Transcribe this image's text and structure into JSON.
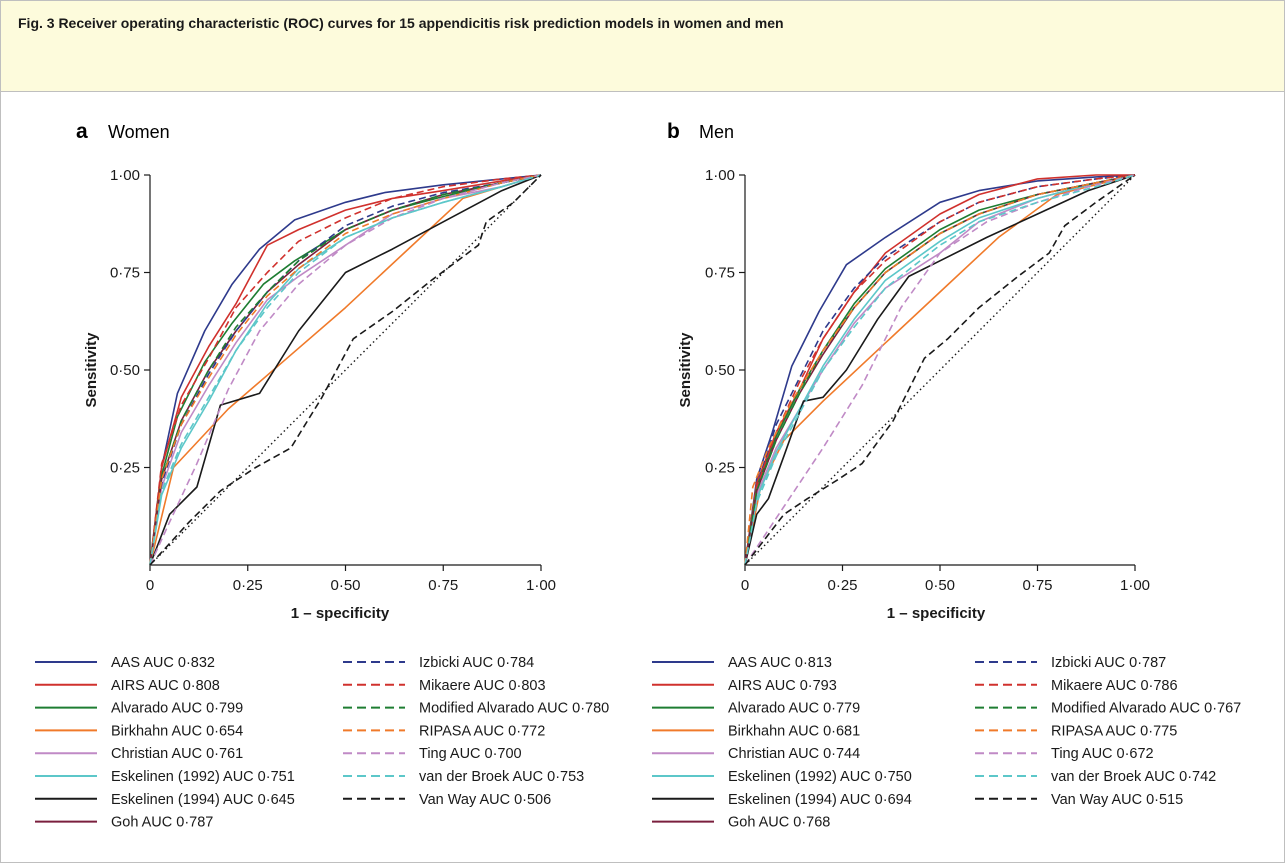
{
  "caption": "Fig. 3  Receiver operating characteristic (ROC) curves for 15 appendicitis risk prediction models in women and men",
  "colors": {
    "AAS": "#2e3a8c",
    "AIRS": "#d0312d",
    "Alvarado": "#1e7d32",
    "Birkhahn": "#f07a2a",
    "Christian": "#c08ac6",
    "Eskelinen1992": "#5cc7c9",
    "Eskelinen1994": "#1a1a1a",
    "Goh": "#7a1f3d",
    "Izbicki": "#2e3a8c",
    "Mikaere": "#d0312d",
    "ModAlvarado": "#1e7d32",
    "RIPASA": "#f07a2a",
    "Ting": "#c08ac6",
    "vanderBroek": "#5cc7c9",
    "VanWay": "#1a1a1a",
    "reference": "#1a1a1a"
  },
  "chart_data": [
    {
      "type": "line",
      "panel": "a",
      "title": "Women",
      "xlabel": "1 – specificity",
      "ylabel": "Sensitivity",
      "xlim": [
        0,
        1
      ],
      "ylim": [
        0,
        1
      ],
      "xticks": [
        "0",
        "0·25",
        "0·50",
        "0·75",
        "1·00"
      ],
      "yticks": [
        "0·25",
        "0·50",
        "0·75",
        "1·00"
      ],
      "grid": false,
      "legend_position": "bottom",
      "series": [
        {
          "name": "AAS AUC 0·832",
          "color_key": "AAS",
          "dash": false,
          "x": [
            0,
            0.03,
            0.07,
            0.14,
            0.21,
            0.28,
            0.37,
            0.5,
            0.6,
            0.75,
            0.9,
            1
          ],
          "y": [
            0,
            0.25,
            0.44,
            0.6,
            0.72,
            0.81,
            0.885,
            0.93,
            0.955,
            0.975,
            0.99,
            1
          ]
        },
        {
          "name": "AIRS AUC 0·808",
          "color_key": "AIRS",
          "dash": false,
          "x": [
            0,
            0.03,
            0.08,
            0.15,
            0.22,
            0.3,
            0.38,
            0.5,
            0.62,
            0.75,
            0.9,
            1
          ],
          "y": [
            0,
            0.25,
            0.43,
            0.56,
            0.67,
            0.82,
            0.86,
            0.91,
            0.94,
            0.96,
            0.985,
            1
          ]
        },
        {
          "name": "Alvarado AUC 0·799",
          "color_key": "Alvarado",
          "dash": false,
          "x": [
            0,
            0.03,
            0.07,
            0.14,
            0.21,
            0.29,
            0.37,
            0.5,
            0.62,
            0.75,
            0.9,
            1
          ],
          "y": [
            0,
            0.23,
            0.38,
            0.52,
            0.62,
            0.72,
            0.78,
            0.86,
            0.91,
            0.945,
            0.98,
            1
          ]
        },
        {
          "name": "Birkhahn AUC 0·654",
          "color_key": "Birkhahn",
          "dash": false,
          "x": [
            0,
            0.06,
            0.2,
            0.35,
            0.5,
            0.65,
            0.8,
            1
          ],
          "y": [
            0,
            0.25,
            0.4,
            0.53,
            0.66,
            0.8,
            0.94,
            1
          ]
        },
        {
          "name": "Christian AUC 0·761",
          "color_key": "Christian",
          "dash": false,
          "x": [
            0,
            0.03,
            0.08,
            0.15,
            0.22,
            0.3,
            0.38,
            0.5,
            0.62,
            0.75,
            0.9,
            1
          ],
          "y": [
            0,
            0.2,
            0.34,
            0.46,
            0.57,
            0.68,
            0.74,
            0.82,
            0.9,
            0.94,
            0.97,
            1
          ]
        },
        {
          "name": "Eskelinen (1992) AUC 0·751",
          "color_key": "Eskelinen1992",
          "dash": false,
          "x": [
            0,
            0.03,
            0.08,
            0.15,
            0.22,
            0.3,
            0.38,
            0.5,
            0.62,
            0.75,
            0.9,
            1
          ],
          "y": [
            0,
            0.18,
            0.3,
            0.42,
            0.55,
            0.67,
            0.76,
            0.84,
            0.89,
            0.93,
            0.97,
            1
          ]
        },
        {
          "name": "Eskelinen (1994) AUC 0·645",
          "color_key": "Eskelinen1994",
          "dash": false,
          "x": [
            0,
            0.05,
            0.12,
            0.18,
            0.28,
            0.38,
            0.5,
            0.62,
            0.75,
            0.9,
            1
          ],
          "y": [
            0,
            0.13,
            0.2,
            0.41,
            0.44,
            0.6,
            0.75,
            0.81,
            0.88,
            0.96,
            1
          ]
        },
        {
          "name": "Goh AUC 0·787",
          "color_key": "Goh",
          "dash": false,
          "x": [
            0,
            0.03,
            0.08,
            0.15,
            0.22,
            0.3,
            0.38,
            0.5,
            0.62,
            0.75,
            0.9,
            1
          ],
          "y": [
            0,
            0.22,
            0.37,
            0.5,
            0.6,
            0.7,
            0.77,
            0.86,
            0.91,
            0.95,
            0.98,
            1
          ]
        },
        {
          "name": "Izbicki AUC 0·784",
          "color_key": "Izbicki",
          "dash": true,
          "x": [
            0,
            0.03,
            0.08,
            0.15,
            0.22,
            0.3,
            0.38,
            0.5,
            0.62,
            0.75,
            0.9,
            1
          ],
          "y": [
            0,
            0.21,
            0.36,
            0.49,
            0.6,
            0.7,
            0.78,
            0.87,
            0.92,
            0.955,
            0.98,
            1
          ]
        },
        {
          "name": "Mikaere AUC 0·803",
          "color_key": "Mikaere",
          "dash": true,
          "x": [
            0,
            0.03,
            0.08,
            0.15,
            0.22,
            0.3,
            0.38,
            0.5,
            0.62,
            0.75,
            0.9,
            1
          ],
          "y": [
            0,
            0.26,
            0.41,
            0.53,
            0.66,
            0.75,
            0.83,
            0.89,
            0.94,
            0.97,
            0.99,
            1
          ]
        },
        {
          "name": "Modified Alvarado AUC 0·780",
          "color_key": "ModAlvarado",
          "dash": true,
          "x": [
            0,
            0.03,
            0.08,
            0.15,
            0.22,
            0.3,
            0.38,
            0.5,
            0.62,
            0.75,
            0.9,
            1
          ],
          "y": [
            0,
            0.22,
            0.37,
            0.5,
            0.61,
            0.7,
            0.78,
            0.86,
            0.91,
            0.95,
            0.98,
            1
          ]
        },
        {
          "name": "RIPASA AUC 0·772",
          "color_key": "RIPASA",
          "dash": true,
          "x": [
            0,
            0.03,
            0.08,
            0.15,
            0.22,
            0.3,
            0.38,
            0.5,
            0.62,
            0.75,
            0.9,
            1
          ],
          "y": [
            0,
            0.22,
            0.36,
            0.48,
            0.59,
            0.69,
            0.76,
            0.85,
            0.9,
            0.94,
            0.98,
            1
          ]
        },
        {
          "name": "Ting AUC 0·700",
          "color_key": "Ting",
          "dash": true,
          "x": [
            0,
            0.05,
            0.12,
            0.2,
            0.28,
            0.38,
            0.5,
            0.62,
            0.75,
            0.9,
            1
          ],
          "y": [
            0,
            0.11,
            0.26,
            0.45,
            0.6,
            0.72,
            0.82,
            0.89,
            0.94,
            0.98,
            1
          ]
        },
        {
          "name": "van der Broek AUC 0·753",
          "color_key": "vanderBroek",
          "dash": true,
          "x": [
            0,
            0.03,
            0.08,
            0.15,
            0.22,
            0.3,
            0.38,
            0.5,
            0.62,
            0.75,
            0.9,
            1
          ],
          "y": [
            0,
            0.19,
            0.31,
            0.43,
            0.55,
            0.66,
            0.75,
            0.84,
            0.89,
            0.93,
            0.97,
            1
          ]
        },
        {
          "name": "Van Way AUC 0·506",
          "color_key": "VanWay",
          "dash": true,
          "x": [
            0,
            0.1,
            0.18,
            0.27,
            0.36,
            0.44,
            0.52,
            0.62,
            0.72,
            0.84,
            0.86,
            0.93,
            1
          ],
          "y": [
            0,
            0.11,
            0.19,
            0.25,
            0.3,
            0.43,
            0.58,
            0.65,
            0.73,
            0.82,
            0.88,
            0.93,
            1
          ]
        }
      ],
      "reference_line": {
        "x": [
          0,
          1
        ],
        "y": [
          0,
          1
        ],
        "style": "dotted"
      }
    },
    {
      "type": "line",
      "panel": "b",
      "title": "Men",
      "xlabel": "1 – specificity",
      "ylabel": "Sensitivity",
      "xlim": [
        0,
        1
      ],
      "ylim": [
        0,
        1
      ],
      "xticks": [
        "0",
        "0·25",
        "0·50",
        "0·75",
        "1·00"
      ],
      "yticks": [
        "0·25",
        "0·50",
        "0·75",
        "1·00"
      ],
      "grid": false,
      "legend_position": "bottom",
      "series": [
        {
          "name": "AAS AUC 0·813",
          "color_key": "AAS",
          "dash": false,
          "x": [
            0,
            0.03,
            0.07,
            0.12,
            0.19,
            0.26,
            0.36,
            0.5,
            0.6,
            0.75,
            0.9,
            1
          ],
          "y": [
            0,
            0.22,
            0.34,
            0.51,
            0.65,
            0.77,
            0.84,
            0.93,
            0.96,
            0.985,
            0.995,
            1
          ]
        },
        {
          "name": "AIRS AUC 0·793",
          "color_key": "AIRS",
          "dash": false,
          "x": [
            0,
            0.03,
            0.08,
            0.14,
            0.2,
            0.28,
            0.36,
            0.5,
            0.6,
            0.75,
            0.9,
            1
          ],
          "y": [
            0,
            0.21,
            0.34,
            0.45,
            0.58,
            0.7,
            0.8,
            0.9,
            0.95,
            0.99,
            1,
            1
          ]
        },
        {
          "name": "Alvarado AUC 0·779",
          "color_key": "Alvarado",
          "dash": false,
          "x": [
            0,
            0.03,
            0.08,
            0.14,
            0.2,
            0.28,
            0.36,
            0.5,
            0.6,
            0.75,
            0.9,
            1
          ],
          "y": [
            0,
            0.2,
            0.33,
            0.45,
            0.55,
            0.67,
            0.76,
            0.86,
            0.91,
            0.95,
            0.98,
            1
          ]
        },
        {
          "name": "Birkhahn AUC 0·681",
          "color_key": "Birkhahn",
          "dash": false,
          "x": [
            0,
            0.04,
            0.1,
            0.2,
            0.35,
            0.5,
            0.65,
            0.8,
            1
          ],
          "y": [
            0,
            0.2,
            0.32,
            0.42,
            0.56,
            0.7,
            0.84,
            0.95,
            1
          ]
        },
        {
          "name": "Christian AUC 0·744",
          "color_key": "Christian",
          "dash": false,
          "x": [
            0,
            0.03,
            0.08,
            0.14,
            0.2,
            0.28,
            0.36,
            0.5,
            0.6,
            0.75,
            0.9,
            1
          ],
          "y": [
            0,
            0.18,
            0.3,
            0.4,
            0.5,
            0.62,
            0.71,
            0.8,
            0.88,
            0.94,
            0.98,
            1
          ]
        },
        {
          "name": "Eskelinen (1992) AUC 0·750",
          "color_key": "Eskelinen1992",
          "dash": false,
          "x": [
            0,
            0.03,
            0.08,
            0.14,
            0.2,
            0.28,
            0.36,
            0.5,
            0.6,
            0.75,
            0.9,
            1
          ],
          "y": [
            0,
            0.17,
            0.29,
            0.4,
            0.51,
            0.63,
            0.73,
            0.83,
            0.89,
            0.94,
            0.98,
            1
          ]
        },
        {
          "name": "Eskelinen (1994) AUC 0·694",
          "color_key": "Eskelinen1994",
          "dash": false,
          "x": [
            0,
            0.03,
            0.06,
            0.1,
            0.15,
            0.2,
            0.26,
            0.34,
            0.42,
            0.5,
            0.62,
            0.75,
            0.88,
            1
          ],
          "y": [
            0,
            0.13,
            0.17,
            0.28,
            0.42,
            0.43,
            0.5,
            0.63,
            0.74,
            0.78,
            0.84,
            0.9,
            0.96,
            1
          ]
        },
        {
          "name": "Goh AUC 0·768",
          "color_key": "Goh",
          "dash": false,
          "x": [
            0,
            0.03,
            0.08,
            0.14,
            0.2,
            0.28,
            0.36,
            0.5,
            0.6,
            0.75,
            0.9,
            1
          ],
          "y": [
            0,
            0.19,
            0.32,
            0.44,
            0.54,
            0.66,
            0.75,
            0.85,
            0.9,
            0.95,
            0.98,
            1
          ]
        },
        {
          "name": "Izbicki AUC 0·787",
          "color_key": "Izbicki",
          "dash": true,
          "x": [
            0,
            0.03,
            0.08,
            0.14,
            0.2,
            0.28,
            0.36,
            0.5,
            0.6,
            0.75,
            0.9,
            1
          ],
          "y": [
            0,
            0.2,
            0.36,
            0.48,
            0.6,
            0.71,
            0.79,
            0.88,
            0.93,
            0.97,
            0.99,
            1
          ]
        },
        {
          "name": "Mikaere AUC 0·786",
          "color_key": "Mikaere",
          "dash": true,
          "x": [
            0,
            0.03,
            0.08,
            0.14,
            0.2,
            0.28,
            0.36,
            0.5,
            0.6,
            0.75,
            0.9,
            1
          ],
          "y": [
            0,
            0.2,
            0.34,
            0.47,
            0.58,
            0.7,
            0.78,
            0.88,
            0.93,
            0.97,
            0.99,
            1
          ]
        },
        {
          "name": "Modified Alvarado AUC 0·767",
          "color_key": "ModAlvarado",
          "dash": true,
          "x": [
            0,
            0.03,
            0.08,
            0.14,
            0.2,
            0.28,
            0.36,
            0.5,
            0.6,
            0.75,
            0.9,
            1
          ],
          "y": [
            0,
            0.19,
            0.32,
            0.44,
            0.55,
            0.66,
            0.75,
            0.85,
            0.9,
            0.95,
            0.98,
            1
          ]
        },
        {
          "name": "RIPASA AUC 0·775",
          "color_key": "RIPASA",
          "dash": true,
          "x": [
            0,
            0.02,
            0.06,
            0.12,
            0.2,
            0.28,
            0.36,
            0.5,
            0.6,
            0.75,
            0.9,
            1
          ],
          "y": [
            0,
            0.2,
            0.3,
            0.42,
            0.55,
            0.66,
            0.75,
            0.85,
            0.9,
            0.95,
            0.98,
            1
          ]
        },
        {
          "name": "Ting AUC 0·672",
          "color_key": "Ting",
          "dash": true,
          "x": [
            0,
            0.1,
            0.2,
            0.3,
            0.4,
            0.5,
            0.62,
            0.75,
            0.88,
            1
          ],
          "y": [
            0,
            0.15,
            0.3,
            0.46,
            0.66,
            0.8,
            0.88,
            0.93,
            0.97,
            1
          ]
        },
        {
          "name": "van der Broek AUC 0·742",
          "color_key": "vanderBroek",
          "dash": true,
          "x": [
            0,
            0.03,
            0.08,
            0.14,
            0.2,
            0.28,
            0.36,
            0.5,
            0.6,
            0.75,
            0.9,
            1
          ],
          "y": [
            0,
            0.16,
            0.28,
            0.39,
            0.5,
            0.61,
            0.71,
            0.82,
            0.88,
            0.93,
            0.97,
            1
          ]
        },
        {
          "name": "Van Way AUC 0·515",
          "color_key": "VanWay",
          "dash": true,
          "x": [
            0,
            0.1,
            0.16,
            0.24,
            0.3,
            0.38,
            0.46,
            0.52,
            0.6,
            0.7,
            0.78,
            0.82,
            0.9,
            1
          ],
          "y": [
            0,
            0.13,
            0.17,
            0.22,
            0.26,
            0.37,
            0.53,
            0.58,
            0.66,
            0.74,
            0.8,
            0.87,
            0.93,
            1
          ]
        }
      ],
      "reference_line": {
        "x": [
          0,
          1
        ],
        "y": [
          0,
          1
        ],
        "style": "dotted"
      }
    }
  ]
}
